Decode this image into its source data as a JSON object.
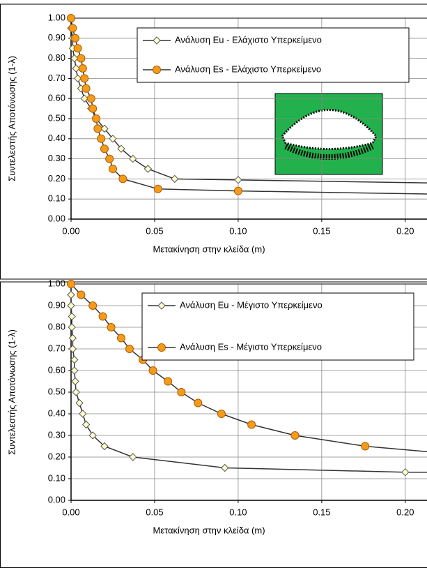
{
  "chart_data": [
    {
      "type": "line",
      "x_label": "Μετακίνηση στην κλείδα (m)",
      "y_label": "Συντελεστής Αποτόνωσης (1-λ)",
      "xlim": [
        0,
        0.213
      ],
      "ylim": [
        0,
        1
      ],
      "xticks": [
        {
          "value": 0,
          "label": "0.00"
        },
        {
          "value": 0.05,
          "label": "0.05"
        },
        {
          "value": 0.1,
          "label": "0.10"
        },
        {
          "value": 0.15,
          "label": "0.15"
        },
        {
          "value": 0.2,
          "label": "0.20"
        }
      ],
      "yticks": [
        {
          "value": 0,
          "label": "0.00"
        },
        {
          "value": 0.1,
          "label": "0.10"
        },
        {
          "value": 0.2,
          "label": "0.20"
        },
        {
          "value": 0.3,
          "label": "0.30"
        },
        {
          "value": 0.4,
          "label": "0.40"
        },
        {
          "value": 0.5,
          "label": "0.50"
        },
        {
          "value": 0.6,
          "label": "0.60"
        },
        {
          "value": 0.7,
          "label": "0.70"
        },
        {
          "value": 0.8,
          "label": "0.80"
        },
        {
          "value": 0.9,
          "label": "0.90"
        },
        {
          "value": 1,
          "label": "1.00"
        }
      ],
      "grid": true,
      "series": [
        {
          "name": "Ανάλυση Eu - Ελάχιστο Υπερκείμενο",
          "color": "#ffffcc",
          "marker": "diamond",
          "x": [
            0,
            0.001,
            0.001,
            0.002,
            0.003,
            0.004,
            0.006,
            0.008,
            0.012,
            0.015,
            0.02,
            0.025,
            0.03,
            0.037,
            0.046,
            0.062,
            0.1,
            0.213
          ],
          "values": [
            0.95,
            0.9,
            0.85,
            0.8,
            0.75,
            0.7,
            0.65,
            0.6,
            0.55,
            0.5,
            0.45,
            0.4,
            0.35,
            0.3,
            0.25,
            0.2,
            0.195,
            0.18
          ]
        },
        {
          "name": "Ανάλυση Es - Ελάχιστο Υπερκείμενο",
          "color": "#f39c1b",
          "marker": "circle",
          "x": [
            0,
            0.001,
            0.0025,
            0.004,
            0.006,
            0.007,
            0.008,
            0.009,
            0.012,
            0.013,
            0.015,
            0.016,
            0.018,
            0.02,
            0.023,
            0.025,
            0.031,
            0.052,
            0.1,
            0.213
          ],
          "values": [
            1,
            0.95,
            0.9,
            0.85,
            0.8,
            0.75,
            0.7,
            0.65,
            0.6,
            0.55,
            0.5,
            0.45,
            0.4,
            0.35,
            0.3,
            0.25,
            0.2,
            0.15,
            0.14,
            0.125
          ]
        }
      ]
    },
    {
      "type": "line",
      "x_label": "Μετακίνηση στην κλείδα (m)",
      "y_label": "Συντελεστής Αποτόνωσης (1-λ)",
      "xlim": [
        0,
        0.213
      ],
      "ylim": [
        0,
        1
      ],
      "xticks": [
        {
          "value": 0,
          "label": "0.00"
        },
        {
          "value": 0.05,
          "label": "0.05"
        },
        {
          "value": 0.1,
          "label": "0.10"
        },
        {
          "value": 0.15,
          "label": "0.15"
        },
        {
          "value": 0.2,
          "label": "0.20"
        }
      ],
      "yticks": [
        {
          "value": 0,
          "label": "0.00"
        },
        {
          "value": 0.1,
          "label": "0.10"
        },
        {
          "value": 0.2,
          "label": "0.20"
        },
        {
          "value": 0.3,
          "label": "0.30"
        },
        {
          "value": 0.4,
          "label": "0.40"
        },
        {
          "value": 0.5,
          "label": "0.50"
        },
        {
          "value": 0.6,
          "label": "0.60"
        },
        {
          "value": 0.7,
          "label": "0.70"
        },
        {
          "value": 0.8,
          "label": "0.80"
        },
        {
          "value": 0.9,
          "label": "0.90"
        },
        {
          "value": 1,
          "label": "1.00"
        }
      ],
      "grid": true,
      "series": [
        {
          "name": "Ανάλυση Eu - Μέγιστο Υπερκείμενο",
          "color": "#ffffcc",
          "marker": "diamond",
          "x": [
            0,
            0,
            0.0005,
            0.0005,
            0.001,
            0.001,
            0.002,
            0.002,
            0.0025,
            0.003,
            0.005,
            0.007,
            0.009,
            0.013,
            0.02,
            0.037,
            0.092,
            0.2,
            0.213
          ],
          "values": [
            0.95,
            0.9,
            0.85,
            0.8,
            0.75,
            0.7,
            0.65,
            0.6,
            0.55,
            0.5,
            0.45,
            0.4,
            0.35,
            0.3,
            0.25,
            0.2,
            0.15,
            0.13,
            0.13
          ]
        },
        {
          "name": "Ανάλυση Es - Μέγιστο Υπερκείμενο",
          "color": "#f39c1b",
          "marker": "circle",
          "x": [
            0,
            0.006,
            0.013,
            0.019,
            0.024,
            0.03,
            0.035,
            0.043,
            0.049,
            0.058,
            0.066,
            0.076,
            0.09,
            0.108,
            0.134,
            0.176,
            0.213
          ],
          "values": [
            1,
            0.95,
            0.9,
            0.85,
            0.8,
            0.75,
            0.7,
            0.65,
            0.6,
            0.55,
            0.5,
            0.45,
            0.4,
            0.35,
            0.3,
            0.25,
            0.225
          ]
        }
      ]
    }
  ]
}
